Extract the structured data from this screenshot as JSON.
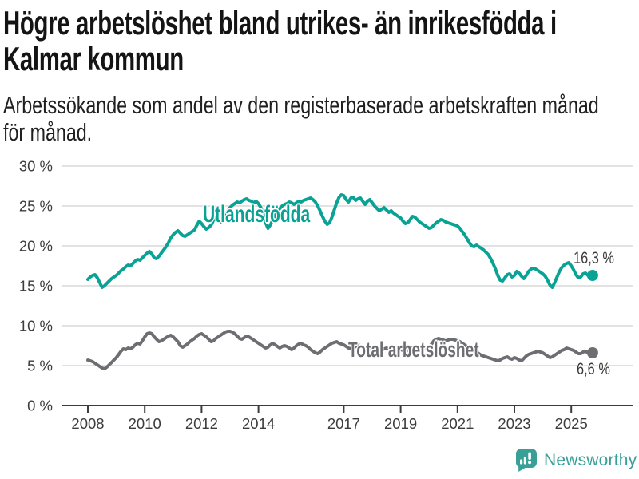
{
  "title": {
    "line1": "Högre arbetslöshet bland utrikes- än inrikesfödda i",
    "line2": "Kalmar kommun"
  },
  "subtitle": {
    "line1": "Arbetssökande som andel av den registerbaserade arbetskraften månad",
    "line2": "för månad."
  },
  "branding": {
    "wordmark": "Newsworthy",
    "icon": "newsworthy-bubble-barchart-icon",
    "color": "#38a097"
  },
  "colors": {
    "foreign_born": "#0aa295",
    "total": "#6d6e71",
    "grid": "#d9d9d9",
    "axis": "#3c3c3c",
    "title_text": "#141414"
  },
  "chart_data": {
    "type": "line",
    "unit": "%",
    "frequency": "monthly",
    "start": "2008-01",
    "end": "2025-10",
    "ylim": [
      0,
      30
    ],
    "grid": "horizontal",
    "legend_position": "inline-labels",
    "y_ticks": [
      {
        "value": 0,
        "label": "0 %"
      },
      {
        "value": 5,
        "label": "5 %"
      },
      {
        "value": 10,
        "label": "10 %"
      },
      {
        "value": 15,
        "label": "15 %"
      },
      {
        "value": 20,
        "label": "20 %"
      },
      {
        "value": 25,
        "label": "25 %"
      },
      {
        "value": 30,
        "label": "30 %"
      }
    ],
    "x_ticks": [
      {
        "year": 2008,
        "label": "2008"
      },
      {
        "year": 2010,
        "label": "2010"
      },
      {
        "year": 2012,
        "label": "2012"
      },
      {
        "year": 2014,
        "label": "2014"
      },
      {
        "year": 2017,
        "label": "2017"
      },
      {
        "year": 2019,
        "label": "2019"
      },
      {
        "year": 2021,
        "label": "2021"
      },
      {
        "year": 2023,
        "label": "2023"
      },
      {
        "year": 2025,
        "label": "2025"
      }
    ],
    "series": [
      {
        "name": "Utlandsfödda",
        "color": "#0aa295",
        "end_label": "16,3 %",
        "last_value": 16.3,
        "values": [
          15.8,
          16.1,
          16.3,
          16.4,
          16.0,
          15.4,
          14.8,
          15.0,
          15.3,
          15.6,
          15.9,
          16.1,
          16.3,
          16.6,
          16.9,
          17.1,
          17.4,
          17.6,
          17.5,
          17.8,
          18.1,
          18.3,
          18.2,
          18.5,
          18.8,
          19.1,
          19.3,
          19.0,
          18.5,
          18.4,
          18.7,
          19.1,
          19.5,
          19.9,
          20.4,
          21.0,
          21.4,
          21.7,
          21.9,
          21.6,
          21.3,
          21.2,
          21.4,
          21.6,
          21.8,
          22.0,
          22.6,
          23.1,
          22.8,
          22.4,
          22.1,
          22.3,
          22.6,
          23.2,
          23.6,
          23.2,
          23.0,
          23.4,
          23.9,
          24.4,
          24.8,
          25.1,
          25.3,
          25.5,
          25.4,
          25.6,
          25.8,
          25.9,
          25.7,
          25.6,
          25.4,
          25.6,
          25.3,
          24.8,
          24.0,
          22.9,
          22.2,
          22.6,
          23.2,
          23.8,
          24.3,
          24.7,
          25.0,
          25.2,
          25.3,
          25.5,
          25.4,
          25.2,
          25.4,
          25.6,
          25.5,
          25.7,
          25.8,
          25.9,
          26.0,
          25.8,
          25.5,
          25.0,
          24.4,
          23.7,
          23.1,
          22.7,
          22.9,
          23.6,
          24.5,
          25.4,
          26.1,
          26.4,
          26.3,
          25.8,
          25.5,
          26.0,
          26.1,
          25.7,
          25.9,
          26.0,
          25.6,
          25.2,
          25.6,
          25.8,
          25.4,
          25.0,
          24.7,
          24.4,
          24.6,
          24.8,
          24.5,
          24.2,
          24.4,
          24.1,
          23.9,
          23.7,
          23.5,
          23.1,
          22.8,
          22.9,
          23.3,
          23.7,
          23.6,
          23.3,
          23.0,
          22.8,
          22.6,
          22.4,
          22.2,
          22.3,
          22.6,
          22.9,
          23.1,
          23.3,
          23.2,
          23.0,
          22.9,
          22.8,
          22.7,
          22.6,
          22.5,
          22.2,
          21.8,
          21.4,
          20.9,
          20.4,
          20.0,
          19.9,
          20.1,
          19.9,
          19.7,
          19.5,
          19.2,
          18.9,
          18.4,
          17.8,
          17.1,
          16.3,
          15.7,
          15.6,
          16.0,
          16.4,
          16.5,
          16.1,
          16.3,
          16.8,
          16.6,
          16.2,
          15.9,
          16.3,
          16.8,
          17.1,
          17.2,
          17.1,
          16.9,
          16.7,
          16.5,
          16.2,
          15.7,
          15.1,
          14.8,
          15.4,
          16.1,
          16.8,
          17.3,
          17.6,
          17.8,
          17.9,
          17.5,
          17.0,
          16.4,
          16.0,
          16.1,
          16.5,
          16.6,
          16.3,
          16.1,
          16.3
        ]
      },
      {
        "name": "Total arbetslöshet",
        "color": "#6d6e71",
        "end_label": "6,6 %",
        "last_value": 6.6,
        "values": [
          5.7,
          5.6,
          5.5,
          5.3,
          5.1,
          4.9,
          4.7,
          4.6,
          4.8,
          5.1,
          5.4,
          5.7,
          6.0,
          6.4,
          6.8,
          7.1,
          7.0,
          7.2,
          7.1,
          7.3,
          7.6,
          7.8,
          7.7,
          8.1,
          8.6,
          9.0,
          9.1,
          9.0,
          8.6,
          8.3,
          8.0,
          8.1,
          8.3,
          8.5,
          8.7,
          8.8,
          8.6,
          8.3,
          8.0,
          7.5,
          7.3,
          7.5,
          7.7,
          8.0,
          8.2,
          8.4,
          8.7,
          8.9,
          9.0,
          8.8,
          8.6,
          8.3,
          8.0,
          8.1,
          8.4,
          8.6,
          8.8,
          9.0,
          9.2,
          9.3,
          9.3,
          9.2,
          9.0,
          8.7,
          8.4,
          8.3,
          8.5,
          8.7,
          8.6,
          8.4,
          8.2,
          8.0,
          7.8,
          7.6,
          7.4,
          7.2,
          7.3,
          7.6,
          7.8,
          7.6,
          7.4,
          7.2,
          7.4,
          7.5,
          7.4,
          7.2,
          7.0,
          7.2,
          7.5,
          7.7,
          7.8,
          7.6,
          7.5,
          7.3,
          7.0,
          6.8,
          6.6,
          6.5,
          6.7,
          7.0,
          7.2,
          7.4,
          7.6,
          7.8,
          7.9,
          8.0,
          7.8,
          7.7,
          7.6,
          7.4,
          7.2,
          7.1,
          7.2,
          7.4,
          7.6,
          7.5,
          7.3,
          7.2,
          7.1,
          7.2,
          7.1,
          7.0,
          6.9,
          6.8,
          6.9,
          7.1,
          7.2,
          7.1,
          7.0,
          6.9,
          6.8,
          6.9,
          7.0,
          6.9,
          6.8,
          6.9,
          7.0,
          7.2,
          7.3,
          7.2,
          7.1,
          7.0,
          7.1,
          7.2,
          7.4,
          7.7,
          8.1,
          8.3,
          8.4,
          8.3,
          8.2,
          8.1,
          8.2,
          8.3,
          8.3,
          8.2,
          8.1,
          8.0,
          7.8,
          7.6,
          7.4,
          7.2,
          7.0,
          6.8,
          6.7,
          6.5,
          6.3,
          6.2,
          6.1,
          6.0,
          5.9,
          5.8,
          5.7,
          5.6,
          5.7,
          5.9,
          6.0,
          6.1,
          5.9,
          5.8,
          6.0,
          5.9,
          5.7,
          5.6,
          5.9,
          6.2,
          6.4,
          6.5,
          6.6,
          6.7,
          6.8,
          6.7,
          6.6,
          6.4,
          6.2,
          6.0,
          6.1,
          6.3,
          6.5,
          6.7,
          6.9,
          7.0,
          7.2,
          7.1,
          7.0,
          6.9,
          6.7,
          6.5,
          6.5,
          6.7,
          6.8,
          6.6,
          6.5,
          6.6
        ]
      }
    ]
  }
}
